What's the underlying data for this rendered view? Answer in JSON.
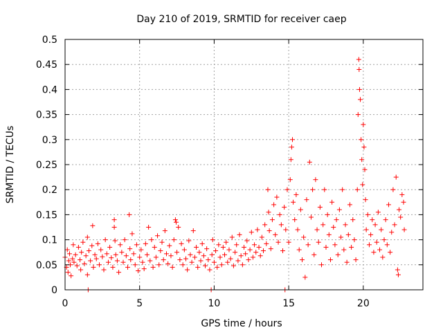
{
  "chart_data": {
    "type": "scatter",
    "title": "Day 210 of 2019, SRMTID for receiver caep",
    "xlabel": "GPS time / hours",
    "ylabel": "SRMTID / TECUs",
    "xlim": [
      0,
      24
    ],
    "ylim": [
      0,
      0.5
    ],
    "xticks": [
      0,
      5,
      10,
      15,
      20
    ],
    "xtick_labels": [
      "0",
      "5",
      "10",
      "15",
      "20"
    ],
    "yticks": [
      0,
      0.05,
      0.1,
      0.15,
      0.2,
      0.25,
      0.3,
      0.35,
      0.4,
      0.45,
      0.5
    ],
    "ytick_labels": [
      "0",
      "0.05",
      "0.1",
      "0.15",
      "0.2",
      "0.25",
      "0.3",
      "0.35",
      "0.4",
      "0.45",
      "0.5"
    ],
    "grid": true,
    "marker": "+",
    "series": [
      {
        "name": "SRMTID",
        "color": "#ff0000",
        "points": [
          [
            0.0,
            0.065
          ],
          [
            0.1,
            0.045
          ],
          [
            0.15,
            0.08
          ],
          [
            0.2,
            0.035
          ],
          [
            0.25,
            0.058
          ],
          [
            0.3,
            0.072
          ],
          [
            0.35,
            0.05
          ],
          [
            0.4,
            0.028
          ],
          [
            0.5,
            0.062
          ],
          [
            0.55,
            0.09
          ],
          [
            0.6,
            0.055
          ],
          [
            0.7,
            0.07
          ],
          [
            0.8,
            0.048
          ],
          [
            0.9,
            0.085
          ],
          [
            1.0,
            0.06
          ],
          [
            1.05,
            0.04
          ],
          [
            1.1,
            0.075
          ],
          [
            1.2,
            0.095
          ],
          [
            1.3,
            0.052
          ],
          [
            1.4,
            0.068
          ],
          [
            1.5,
            0.03
          ],
          [
            1.5,
            0.105
          ],
          [
            1.55,
            0.0
          ],
          [
            1.6,
            0.078
          ],
          [
            1.7,
            0.058
          ],
          [
            1.8,
            0.088
          ],
          [
            1.85,
            0.128
          ],
          [
            1.9,
            0.045
          ],
          [
            2.0,
            0.07
          ],
          [
            2.1,
            0.062
          ],
          [
            2.2,
            0.092
          ],
          [
            2.3,
            0.05
          ],
          [
            2.4,
            0.08
          ],
          [
            2.5,
            0.066
          ],
          [
            2.6,
            0.04
          ],
          [
            2.7,
            0.1
          ],
          [
            2.8,
            0.072
          ],
          [
            2.9,
            0.055
          ],
          [
            3.0,
            0.085
          ],
          [
            3.1,
            0.064
          ],
          [
            3.2,
            0.045
          ],
          [
            3.3,
            0.125
          ],
          [
            3.3,
            0.14
          ],
          [
            3.35,
            0.098
          ],
          [
            3.4,
            0.07
          ],
          [
            3.5,
            0.058
          ],
          [
            3.6,
            0.035
          ],
          [
            3.7,
            0.09
          ],
          [
            3.8,
            0.075
          ],
          [
            3.9,
            0.055
          ],
          [
            4.0,
            0.1
          ],
          [
            4.1,
            0.068
          ],
          [
            4.2,
            0.045
          ],
          [
            4.3,
            0.15
          ],
          [
            4.35,
            0.082
          ],
          [
            4.4,
            0.06
          ],
          [
            4.5,
            0.112
          ],
          [
            4.6,
            0.072
          ],
          [
            4.7,
            0.05
          ],
          [
            4.8,
            0.09
          ],
          [
            4.9,
            0.038
          ],
          [
            5.0,
            0.065
          ],
          [
            5.1,
            0.08
          ],
          [
            5.2,
            0.055
          ],
          [
            5.3,
            0.042
          ],
          [
            5.4,
            0.092
          ],
          [
            5.5,
            0.07
          ],
          [
            5.6,
            0.125
          ],
          [
            5.7,
            0.058
          ],
          [
            5.8,
            0.1
          ],
          [
            5.9,
            0.045
          ],
          [
            6.0,
            0.085
          ],
          [
            6.1,
            0.065
          ],
          [
            6.2,
            0.108
          ],
          [
            6.3,
            0.05
          ],
          [
            6.4,
            0.078
          ],
          [
            6.5,
            0.095
          ],
          [
            6.6,
            0.06
          ],
          [
            6.7,
            0.118
          ],
          [
            6.8,
            0.072
          ],
          [
            6.9,
            0.052
          ],
          [
            7.0,
            0.088
          ],
          [
            7.1,
            0.068
          ],
          [
            7.2,
            0.045
          ],
          [
            7.3,
            0.1
          ],
          [
            7.4,
            0.14
          ],
          [
            7.45,
            0.135
          ],
          [
            7.5,
            0.075
          ],
          [
            7.6,
            0.125
          ],
          [
            7.7,
            0.06
          ],
          [
            7.8,
            0.092
          ],
          [
            7.9,
            0.05
          ],
          [
            8.0,
            0.08
          ],
          [
            8.1,
            0.062
          ],
          [
            8.2,
            0.04
          ],
          [
            8.3,
            0.098
          ],
          [
            8.4,
            0.07
          ],
          [
            8.5,
            0.055
          ],
          [
            8.6,
            0.118
          ],
          [
            8.7,
            0.065
          ],
          [
            8.8,
            0.085
          ],
          [
            8.9,
            0.045
          ],
          [
            9.0,
            0.075
          ],
          [
            9.1,
            0.058
          ],
          [
            9.2,
            0.092
          ],
          [
            9.3,
            0.068
          ],
          [
            9.4,
            0.048
          ],
          [
            9.5,
            0.082
          ],
          [
            9.6,
            0.06
          ],
          [
            9.7,
            0.04
          ],
          [
            9.8,
            0.0
          ],
          [
            9.85,
            0.07
          ],
          [
            9.9,
            0.1
          ],
          [
            10.0,
            0.055
          ],
          [
            10.1,
            0.078
          ],
          [
            10.2,
            0.045
          ],
          [
            10.3,
            0.09
          ],
          [
            10.4,
            0.065
          ],
          [
            10.5,
            0.05
          ],
          [
            10.6,
            0.085
          ],
          [
            10.7,
            0.07
          ],
          [
            10.8,
            0.095
          ],
          [
            10.9,
            0.055
          ],
          [
            11.0,
            0.08
          ],
          [
            11.1,
            0.062
          ],
          [
            11.2,
            0.105
          ],
          [
            11.3,
            0.048
          ],
          [
            11.4,
            0.075
          ],
          [
            11.5,
            0.09
          ],
          [
            11.6,
            0.058
          ],
          [
            11.7,
            0.11
          ],
          [
            11.8,
            0.068
          ],
          [
            11.9,
            0.05
          ],
          [
            12.0,
            0.085
          ],
          [
            12.1,
            0.072
          ],
          [
            12.2,
            0.098
          ],
          [
            12.3,
            0.06
          ],
          [
            12.4,
            0.08
          ],
          [
            12.5,
            0.115
          ],
          [
            12.6,
            0.065
          ],
          [
            12.7,
            0.09
          ],
          [
            12.8,
            0.075
          ],
          [
            12.9,
            0.12
          ],
          [
            13.0,
            0.085
          ],
          [
            13.1,
            0.068
          ],
          [
            13.2,
            0.105
          ],
          [
            13.3,
            0.078
          ],
          [
            13.4,
            0.13
          ],
          [
            13.5,
            0.092
          ],
          [
            13.6,
            0.2
          ],
          [
            13.65,
            0.155
          ],
          [
            13.7,
            0.118
          ],
          [
            13.8,
            0.082
          ],
          [
            13.9,
            0.14
          ],
          [
            14.0,
            0.17
          ],
          [
            14.1,
            0.11
          ],
          [
            14.2,
            0.185
          ],
          [
            14.3,
            0.095
          ],
          [
            14.4,
            0.15
          ],
          [
            14.5,
            0.13
          ],
          [
            14.6,
            0.078
          ],
          [
            14.7,
            0.165
          ],
          [
            14.75,
            0.0
          ],
          [
            14.8,
            0.12
          ],
          [
            14.9,
            0.2
          ],
          [
            15.0,
            0.095
          ],
          [
            15.1,
            0.22
          ],
          [
            15.15,
            0.26
          ],
          [
            15.2,
            0.285
          ],
          [
            15.25,
            0.3
          ],
          [
            15.3,
            0.175
          ],
          [
            15.4,
            0.14
          ],
          [
            15.5,
            0.19
          ],
          [
            15.6,
            0.12
          ],
          [
            15.7,
            0.08
          ],
          [
            15.8,
            0.16
          ],
          [
            15.9,
            0.06
          ],
          [
            16.0,
            0.105
          ],
          [
            16.1,
            0.025
          ],
          [
            16.2,
            0.18
          ],
          [
            16.3,
            0.09
          ],
          [
            16.4,
            0.255
          ],
          [
            16.5,
            0.145
          ],
          [
            16.6,
            0.2
          ],
          [
            16.7,
            0.07
          ],
          [
            16.8,
            0.22
          ],
          [
            16.9,
            0.12
          ],
          [
            17.0,
            0.095
          ],
          [
            17.1,
            0.165
          ],
          [
            17.2,
            0.05
          ],
          [
            17.3,
            0.13
          ],
          [
            17.4,
            0.2
          ],
          [
            17.5,
            0.085
          ],
          [
            17.6,
            0.15
          ],
          [
            17.7,
            0.11
          ],
          [
            17.8,
            0.06
          ],
          [
            17.9,
            0.175
          ],
          [
            18.0,
            0.125
          ],
          [
            18.1,
            0.09
          ],
          [
            18.2,
            0.14
          ],
          [
            18.3,
            0.07
          ],
          [
            18.4,
            0.16
          ],
          [
            18.5,
            0.105
          ],
          [
            18.6,
            0.2
          ],
          [
            18.7,
            0.08
          ],
          [
            18.8,
            0.13
          ],
          [
            18.9,
            0.055
          ],
          [
            19.0,
            0.11
          ],
          [
            19.1,
            0.17
          ],
          [
            19.2,
            0.085
          ],
          [
            19.3,
            0.14
          ],
          [
            19.4,
            0.1
          ],
          [
            19.5,
            0.06
          ],
          [
            19.6,
            0.2
          ],
          [
            19.65,
            0.35
          ],
          [
            19.7,
            0.46
          ],
          [
            19.72,
            0.44
          ],
          [
            19.75,
            0.4
          ],
          [
            19.8,
            0.38
          ],
          [
            19.85,
            0.3
          ],
          [
            19.9,
            0.26
          ],
          [
            19.95,
            0.21
          ],
          [
            20.0,
            0.33
          ],
          [
            20.05,
            0.285
          ],
          [
            20.1,
            0.24
          ],
          [
            20.15,
            0.18
          ],
          [
            20.2,
            0.12
          ],
          [
            20.3,
            0.15
          ],
          [
            20.4,
            0.09
          ],
          [
            20.5,
            0.11
          ],
          [
            20.6,
            0.14
          ],
          [
            20.7,
            0.075
          ],
          [
            20.8,
            0.13
          ],
          [
            20.9,
            0.095
          ],
          [
            21.0,
            0.155
          ],
          [
            21.1,
            0.08
          ],
          [
            21.2,
            0.12
          ],
          [
            21.3,
            0.065
          ],
          [
            21.4,
            0.1
          ],
          [
            21.5,
            0.14
          ],
          [
            21.6,
            0.09
          ],
          [
            21.7,
            0.17
          ],
          [
            21.8,
            0.075
          ],
          [
            21.9,
            0.115
          ],
          [
            22.0,
            0.2
          ],
          [
            22.1,
            0.13
          ],
          [
            22.2,
            0.225
          ],
          [
            22.3,
            0.04
          ],
          [
            22.35,
            0.03
          ],
          [
            22.4,
            0.16
          ],
          [
            22.5,
            0.145
          ],
          [
            22.6,
            0.19
          ],
          [
            22.7,
            0.175
          ],
          [
            22.75,
            0.12
          ]
        ]
      }
    ]
  }
}
